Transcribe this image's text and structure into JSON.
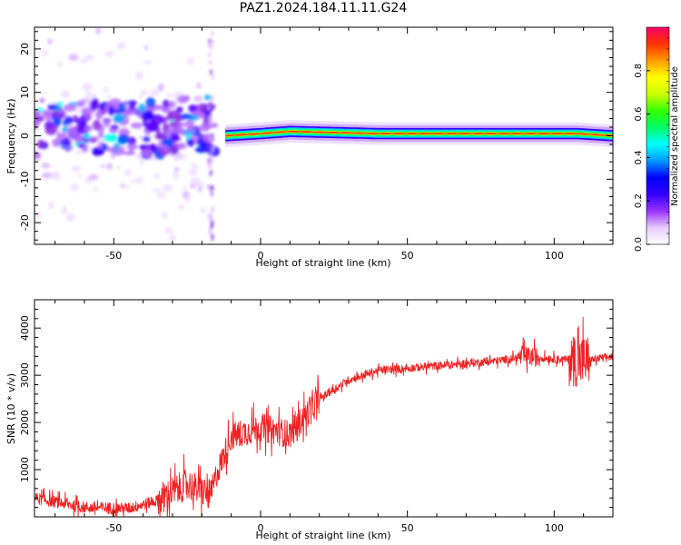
{
  "title": "PAZ1.2024.184.11.11.G24",
  "chart_data": [
    {
      "type": "heatmap",
      "xlabel": "Height of straight line (km)",
      "ylabel": "Frequency (Hz)",
      "xlim": [
        -77,
        120
      ],
      "ylim": [
        -25,
        25
      ],
      "xticks": [
        -50,
        0,
        50,
        100
      ],
      "yticks": [
        -20,
        -10,
        0,
        10,
        20
      ],
      "colorbar": {
        "label": "Normalized spectral amplitude",
        "range": [
          0,
          1
        ],
        "ticks": [
          "0.0",
          "0.2",
          "0.4",
          "0.6",
          "0.8"
        ],
        "colors": [
          "#ffffff",
          "#e6ccff",
          "#9933ff",
          "#3300ff",
          "#0000ff",
          "#0099ff",
          "#00ffff",
          "#00ff66",
          "#33ff00",
          "#ccff00",
          "#ffff00",
          "#ff9900",
          "#ff3300",
          "#ff0066"
        ]
      },
      "tone": {
        "x_start": -12,
        "x_end": 120,
        "frequency_hz": [
          [
            -12,
            0.0
          ],
          [
            0,
            0.5
          ],
          [
            10,
            1.0
          ],
          [
            40,
            0.5
          ],
          [
            80,
            0.5
          ],
          [
            108,
            0.5
          ],
          [
            120,
            0.0
          ]
        ]
      },
      "scatter_region": {
        "x_range": [
          -77,
          -16
        ],
        "y_range": [
          -25,
          25
        ]
      }
    },
    {
      "type": "line",
      "xlabel": "Height of straight line (km)",
      "ylabel": "SNR (10 * v/v)",
      "xlim": [
        -77,
        120
      ],
      "ylim": [
        0,
        4600
      ],
      "xticks": [
        -50,
        0,
        50,
        100
      ],
      "yticks": [
        1000,
        2000,
        3000,
        4000
      ],
      "color": "#ee2222",
      "trend": [
        [
          -77,
          400
        ],
        [
          -60,
          200
        ],
        [
          -45,
          180
        ],
        [
          -35,
          350
        ],
        [
          -25,
          700
        ],
        [
          -17,
          450
        ],
        [
          -15,
          900
        ],
        [
          -10,
          1700
        ],
        [
          0,
          1900
        ],
        [
          10,
          1750
        ],
        [
          20,
          2500
        ],
        [
          30,
          2900
        ],
        [
          40,
          3100
        ],
        [
          60,
          3200
        ],
        [
          80,
          3300
        ],
        [
          90,
          3400
        ],
        [
          100,
          3350
        ],
        [
          110,
          3300
        ],
        [
          120,
          3400
        ]
      ]
    }
  ]
}
